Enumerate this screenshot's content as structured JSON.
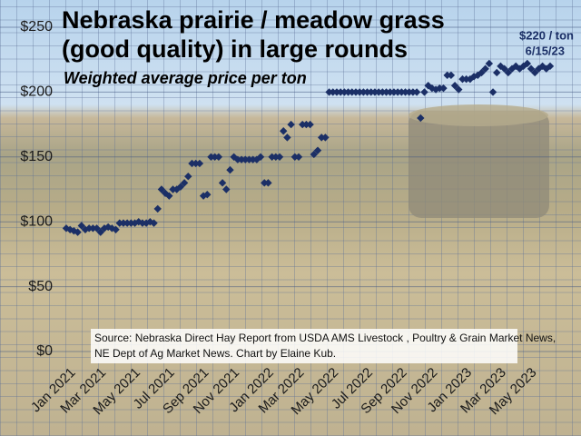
{
  "chart_data": {
    "type": "scatter",
    "title": [
      "Nebraska prairie / meadow grass",
      "(good quality) in large rounds"
    ],
    "subtitle": "Weighted average price per ton",
    "annotation": [
      "$220 / ton",
      "6/15/23"
    ],
    "source": [
      "Source: Nebraska Direct Hay Report from USDA AMS Livestock , Poultry & Grain Market News,",
      "NE Dept of Ag Market News. Chart by Elaine Kub."
    ],
    "categories": [
      "Jan 2021",
      null,
      null,
      null,
      null,
      null,
      null,
      null,
      "Mar 2021",
      null,
      null,
      null,
      null,
      null,
      null,
      null,
      null,
      "May 2021",
      null,
      null,
      null,
      null,
      null,
      null,
      null,
      null,
      "Jul 2021",
      null,
      null,
      null,
      null,
      null,
      null,
      null,
      null,
      "Sep 2021",
      null,
      null,
      null,
      null,
      null,
      null,
      null,
      "Nov 2021",
      null,
      null,
      null,
      null,
      null,
      null,
      null,
      null,
      "Jan 2022",
      null,
      null,
      null,
      null,
      null,
      null,
      null,
      "Mar 2022",
      null,
      null,
      null,
      null,
      null,
      null,
      null,
      null,
      "May 2022",
      null,
      null,
      null,
      null,
      null,
      null,
      null,
      null,
      "Jul 2022",
      null,
      null,
      null,
      null,
      null,
      null,
      null,
      null,
      "Sep 2022",
      null,
      null,
      null,
      null,
      null,
      null,
      null,
      "Nov 2022",
      null,
      null,
      null,
      null,
      null,
      null,
      null,
      null,
      "Jan 2023",
      null,
      null,
      null,
      null,
      null,
      null,
      null,
      null,
      "Mar 2023",
      null,
      null,
      null,
      null,
      null,
      null,
      null,
      "May 2023",
      null,
      null,
      null,
      null,
      null,
      null
    ],
    "values": [
      95,
      94,
      93,
      92,
      97,
      94,
      95,
      95,
      95,
      92,
      95,
      96,
      95,
      94,
      99,
      99,
      99,
      99,
      99,
      100,
      99,
      99,
      100,
      99,
      110,
      125,
      122,
      120,
      125,
      125,
      127,
      130,
      135,
      145,
      145,
      145,
      120,
      121,
      150,
      150,
      150,
      130,
      125,
      140,
      150,
      148,
      148,
      148,
      148,
      148,
      148,
      150,
      130,
      130,
      150,
      150,
      150,
      170,
      165,
      175,
      150,
      150,
      175,
      175,
      175,
      152,
      155,
      165,
      165,
      200,
      200,
      200,
      200,
      200,
      200,
      200,
      200,
      200,
      200,
      200,
      200,
      200,
      200,
      200,
      200,
      200,
      200,
      200,
      200,
      200,
      200,
      200,
      200,
      180,
      200,
      205,
      203,
      202,
      203,
      203,
      213,
      213,
      205,
      202,
      210,
      210,
      210,
      212,
      213,
      215,
      218,
      222,
      200,
      215,
      220,
      218,
      215,
      218,
      220,
      218,
      220,
      222,
      218,
      215,
      218,
      220,
      218,
      220
    ],
    "color": "#1b2f66",
    "ylim": [
      0,
      250
    ],
    "yticks": [
      {
        "value": 0,
        "label": "$0"
      },
      {
        "value": 50,
        "label": "$50"
      },
      {
        "value": 100,
        "label": "$100"
      },
      {
        "value": 150,
        "label": "$150"
      },
      {
        "value": 200,
        "label": "$200"
      },
      {
        "value": 250,
        "label": "$250"
      }
    ],
    "grid": true
  }
}
